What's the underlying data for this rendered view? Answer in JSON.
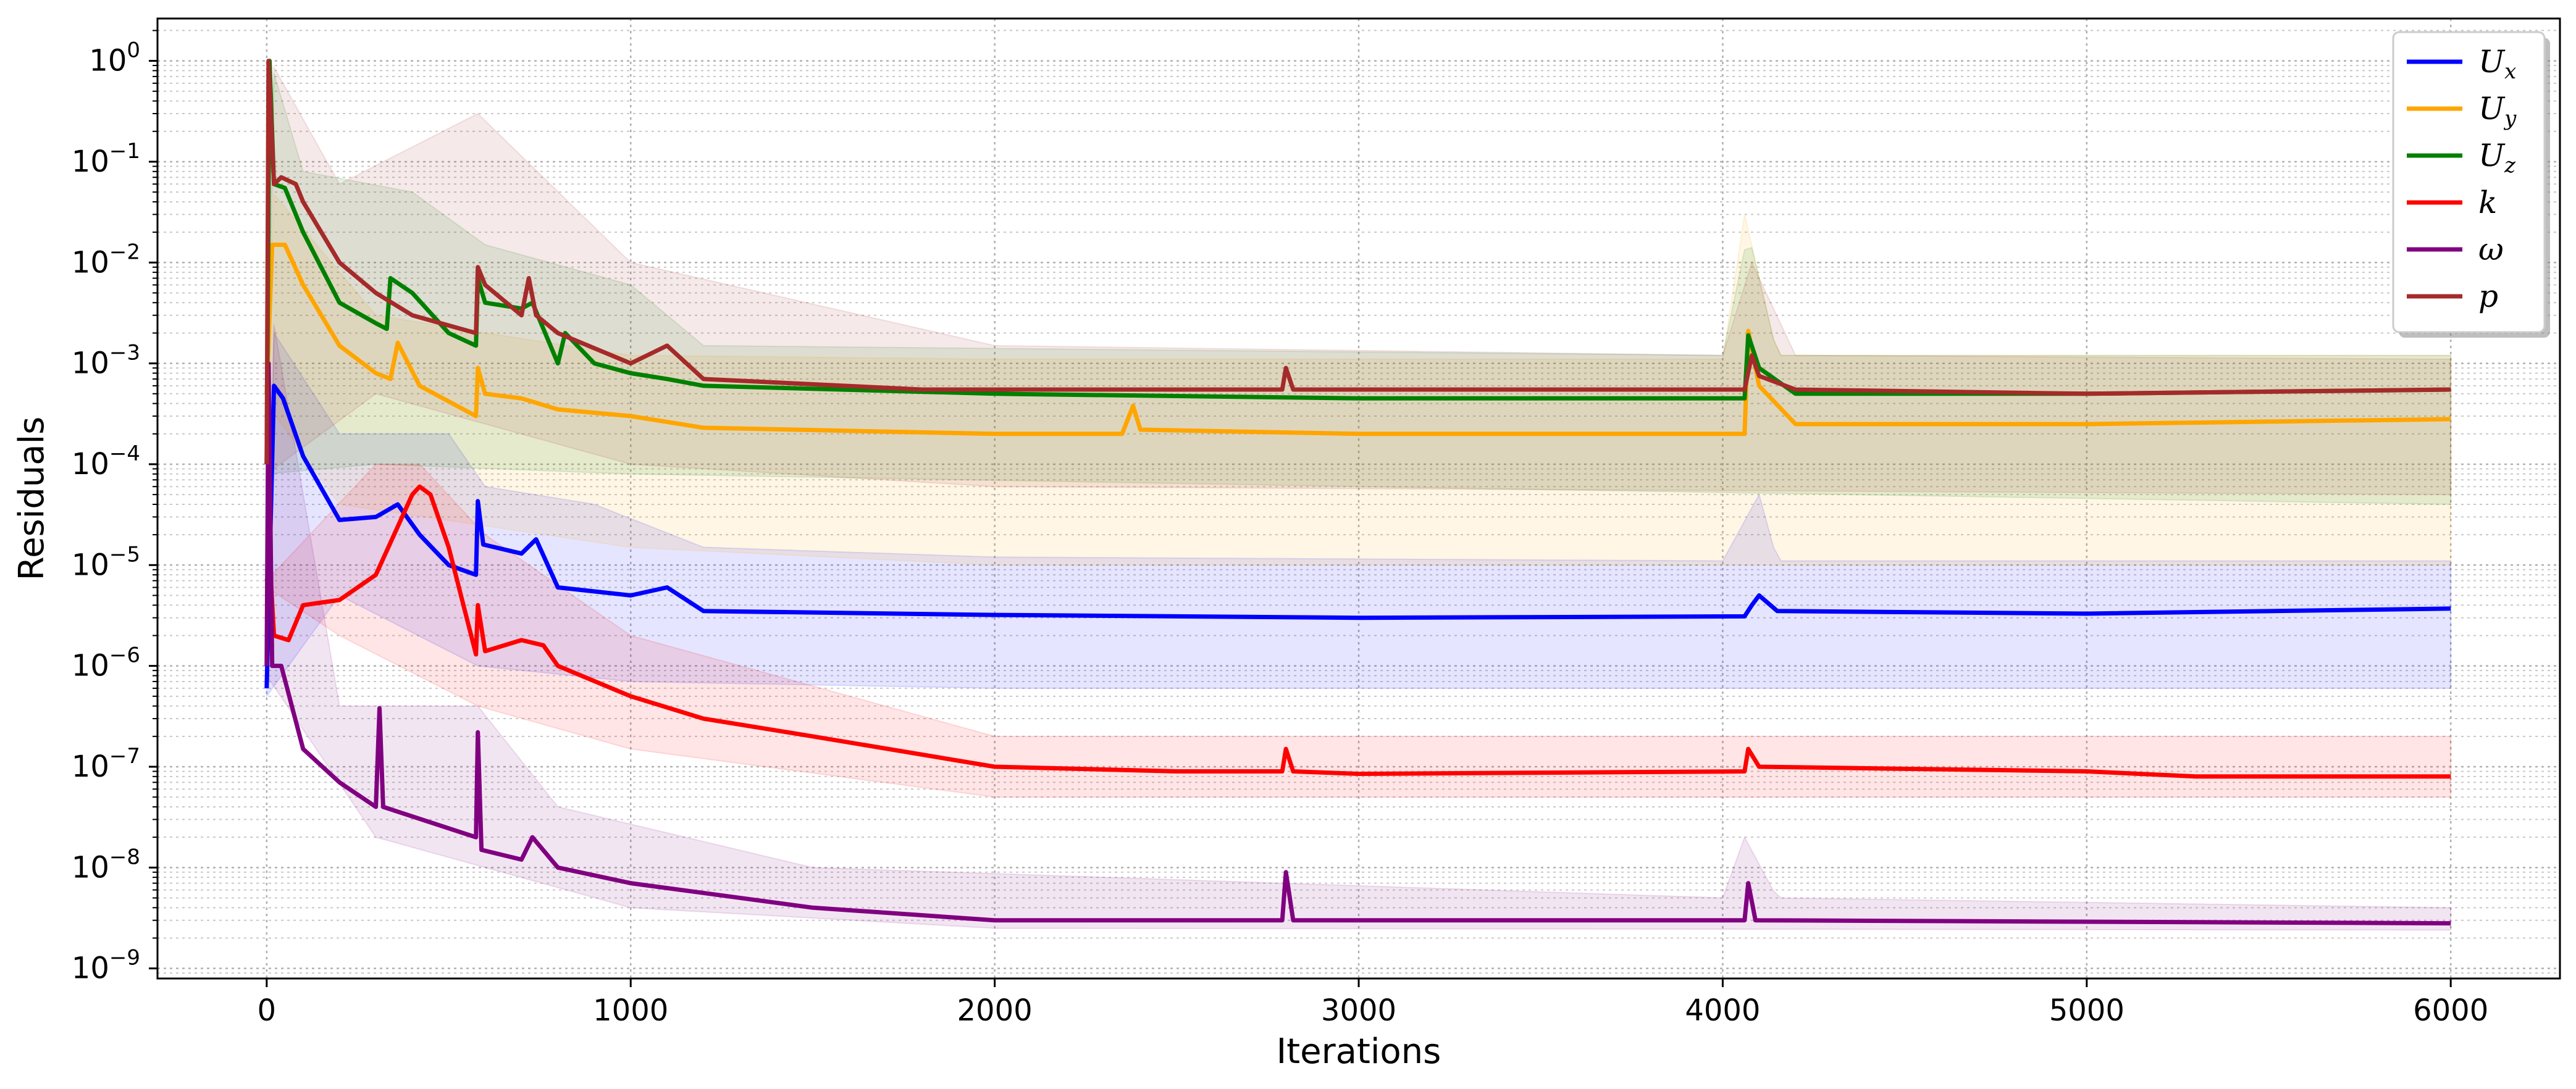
{
  "chart_data": {
    "type": "line",
    "title": "",
    "xlabel": "Iterations",
    "ylabel": "Residuals",
    "xlim": [
      -300,
      6300
    ],
    "ylog": true,
    "ylim_exp": [
      -9.1,
      0.42
    ],
    "x_ticks": [
      0,
      1000,
      2000,
      3000,
      4000,
      5000,
      6000
    ],
    "x_tick_labels": [
      "0",
      "1000",
      "2000",
      "3000",
      "4000",
      "5000",
      "6000"
    ],
    "y_ticks_exp": [
      0,
      -1,
      -2,
      -3,
      -4,
      -5,
      -6,
      -7,
      -8,
      -9
    ],
    "y_tick_labels": [
      {
        "base": "10",
        "exp": "0"
      },
      {
        "base": "10",
        "exp": "−1"
      },
      {
        "base": "10",
        "exp": "−2"
      },
      {
        "base": "10",
        "exp": "−3"
      },
      {
        "base": "10",
        "exp": "−4"
      },
      {
        "base": "10",
        "exp": "−5"
      },
      {
        "base": "10",
        "exp": "−6"
      },
      {
        "base": "10",
        "exp": "−7"
      },
      {
        "base": "10",
        "exp": "−8"
      },
      {
        "base": "10",
        "exp": "−9"
      }
    ],
    "grid": "major and minor, dotted",
    "legend_position": "top-right",
    "series": [
      {
        "name": "U_x",
        "label_main": "U",
        "label_sub": "x",
        "color": "#0000ff",
        "points": [
          [
            0,
            6e-07
          ],
          [
            20,
            0.0006
          ],
          [
            45,
            0.00045
          ],
          [
            100,
            0.00012
          ],
          [
            200,
            2.8e-05
          ],
          [
            300,
            3e-05
          ],
          [
            360,
            4e-05
          ],
          [
            420,
            2e-05
          ],
          [
            500,
            1e-05
          ],
          [
            575,
            8e-06
          ],
          [
            580,
            4.3e-05
          ],
          [
            595,
            1.6e-05
          ],
          [
            700,
            1.3e-05
          ],
          [
            740,
            1.8e-05
          ],
          [
            800,
            6e-06
          ],
          [
            1000,
            5e-06
          ],
          [
            1100,
            6e-06
          ],
          [
            1200,
            3.5e-06
          ],
          [
            2000,
            3.2e-06
          ],
          [
            3000,
            3e-06
          ],
          [
            4060,
            3.1e-06
          ],
          [
            4080,
            4e-06
          ],
          [
            4100,
            5e-06
          ],
          [
            4150,
            3.5e-06
          ],
          [
            5000,
            3.3e-06
          ],
          [
            6000,
            3.7e-06
          ]
        ],
        "band_upper": [
          [
            0,
            6e-07
          ],
          [
            20,
            0.002
          ],
          [
            200,
            0.0002
          ],
          [
            500,
            0.0002
          ],
          [
            600,
            6e-05
          ],
          [
            900,
            4e-05
          ],
          [
            1200,
            1.5e-05
          ],
          [
            2000,
            1.2e-05
          ],
          [
            4000,
            1.1e-05
          ],
          [
            4100,
            5e-05
          ],
          [
            4150,
            1.1e-05
          ],
          [
            6000,
            1.1e-05
          ]
        ],
        "band_lower": [
          [
            0,
            5e-07
          ],
          [
            200,
            5e-06
          ],
          [
            580,
            1e-06
          ],
          [
            1000,
            7e-07
          ],
          [
            2000,
            6e-07
          ],
          [
            6000,
            6e-07
          ]
        ]
      },
      {
        "name": "U_y",
        "label_main": "U",
        "label_sub": "y",
        "color": "#ffa500",
        "points": [
          [
            0,
            0.0005
          ],
          [
            15,
            0.015
          ],
          [
            50,
            0.015
          ],
          [
            100,
            0.006
          ],
          [
            200,
            0.0015
          ],
          [
            300,
            0.0008
          ],
          [
            340,
            0.0007
          ],
          [
            360,
            0.0016
          ],
          [
            420,
            0.0006
          ],
          [
            575,
            0.0003
          ],
          [
            580,
            0.0009
          ],
          [
            600,
            0.0005
          ],
          [
            700,
            0.00045
          ],
          [
            800,
            0.00035
          ],
          [
            1000,
            0.0003
          ],
          [
            1200,
            0.00023
          ],
          [
            2000,
            0.0002
          ],
          [
            2350,
            0.0002
          ],
          [
            2380,
            0.00038
          ],
          [
            2400,
            0.00022
          ],
          [
            3000,
            0.0002
          ],
          [
            4060,
            0.0002
          ],
          [
            4070,
            0.0021
          ],
          [
            4100,
            0.0006
          ],
          [
            4200,
            0.00025
          ],
          [
            5000,
            0.00025
          ],
          [
            6000,
            0.00028
          ]
        ],
        "band_upper": [
          [
            0,
            0.0005
          ],
          [
            15,
            0.05
          ],
          [
            300,
            0.003
          ],
          [
            600,
            0.002
          ],
          [
            1000,
            0.0012
          ],
          [
            2000,
            0.0011
          ],
          [
            4000,
            0.0011
          ],
          [
            4060,
            0.03
          ],
          [
            4150,
            0.0012
          ],
          [
            6000,
            0.0012
          ]
        ],
        "band_lower": [
          [
            0,
            0.0004
          ],
          [
            200,
            4e-05
          ],
          [
            1000,
            1.5e-05
          ],
          [
            2000,
            1e-05
          ],
          [
            6000,
            1e-05
          ]
        ]
      },
      {
        "name": "U_z",
        "label_main": "U",
        "label_sub": "z",
        "color": "#008000",
        "points": [
          [
            0,
            0.0001
          ],
          [
            8,
            1
          ],
          [
            20,
            0.06
          ],
          [
            50,
            0.055
          ],
          [
            100,
            0.02
          ],
          [
            200,
            0.004
          ],
          [
            300,
            0.0025
          ],
          [
            330,
            0.0022
          ],
          [
            340,
            0.007
          ],
          [
            400,
            0.005
          ],
          [
            500,
            0.002
          ],
          [
            575,
            0.0015
          ],
          [
            580,
            0.007
          ],
          [
            600,
            0.004
          ],
          [
            700,
            0.0035
          ],
          [
            730,
            0.004
          ],
          [
            800,
            0.001
          ],
          [
            820,
            0.002
          ],
          [
            900,
            0.001
          ],
          [
            1000,
            0.0008
          ],
          [
            1100,
            0.0007
          ],
          [
            1200,
            0.0006
          ],
          [
            2000,
            0.0005
          ],
          [
            3000,
            0.00045
          ],
          [
            4060,
            0.00045
          ],
          [
            4070,
            0.0019
          ],
          [
            4100,
            0.0009
          ],
          [
            4200,
            0.0005
          ],
          [
            5000,
            0.0005
          ],
          [
            6000,
            0.00055
          ]
        ],
        "band_upper": [
          [
            0,
            0.0001
          ],
          [
            10,
            1
          ],
          [
            100,
            0.08
          ],
          [
            400,
            0.05
          ],
          [
            600,
            0.015
          ],
          [
            1000,
            0.006
          ],
          [
            1200,
            0.0015
          ],
          [
            4000,
            0.0012
          ],
          [
            4070,
            0.02
          ],
          [
            4150,
            0.0012
          ],
          [
            6000,
            0.0012
          ]
        ],
        "band_lower": [
          [
            0,
            8e-05
          ],
          [
            300,
            0.0001
          ],
          [
            1000,
            8e-05
          ],
          [
            3000,
            6e-05
          ],
          [
            6000,
            4e-05
          ]
        ]
      },
      {
        "name": "k",
        "label_main": "k",
        "label_sub": "",
        "color": "#ff0000",
        "points": [
          [
            0,
            7e-06
          ],
          [
            10,
            9e-06
          ],
          [
            20,
            2e-06
          ],
          [
            60,
            1.8e-06
          ],
          [
            100,
            4e-06
          ],
          [
            200,
            4.5e-06
          ],
          [
            300,
            8e-06
          ],
          [
            350,
            2e-05
          ],
          [
            400,
            5e-05
          ],
          [
            420,
            6e-05
          ],
          [
            450,
            5e-05
          ],
          [
            500,
            1.5e-05
          ],
          [
            575,
            1.3e-06
          ],
          [
            580,
            4e-06
          ],
          [
            600,
            1.4e-06
          ],
          [
            700,
            1.8e-06
          ],
          [
            760,
            1.6e-06
          ],
          [
            800,
            1e-06
          ],
          [
            1000,
            5e-07
          ],
          [
            1200,
            3e-07
          ],
          [
            1500,
            2e-07
          ],
          [
            2000,
            1e-07
          ],
          [
            2500,
            9e-08
          ],
          [
            2790,
            9e-08
          ],
          [
            2800,
            1.5e-07
          ],
          [
            2820,
            9e-08
          ],
          [
            3000,
            8.5e-08
          ],
          [
            4060,
            9e-08
          ],
          [
            4070,
            1.5e-07
          ],
          [
            4100,
            1e-07
          ],
          [
            5000,
            9e-08
          ],
          [
            5300,
            8e-08
          ],
          [
            6000,
            8e-08
          ]
        ],
        "band_upper": [
          [
            0,
            7e-06
          ],
          [
            300,
            0.0001
          ],
          [
            420,
            0.0001
          ],
          [
            600,
            2e-05
          ],
          [
            1000,
            2e-06
          ],
          [
            2000,
            2e-07
          ],
          [
            3000,
            2e-07
          ],
          [
            4100,
            2e-07
          ],
          [
            6000,
            2e-07
          ]
        ],
        "band_lower": [
          [
            0,
            6e-06
          ],
          [
            200,
            2e-06
          ],
          [
            580,
            4e-07
          ],
          [
            1000,
            1.5e-07
          ],
          [
            2000,
            5e-08
          ],
          [
            3000,
            5e-08
          ],
          [
            6000,
            5e-08
          ]
        ]
      },
      {
        "name": "ω",
        "label_main": "ω",
        "label_sub": "",
        "color": "#800080",
        "points": [
          [
            0,
            1e-06
          ],
          [
            5,
            0.001
          ],
          [
            15,
            1e-06
          ],
          [
            40,
            1e-06
          ],
          [
            100,
            1.5e-07
          ],
          [
            200,
            7e-08
          ],
          [
            300,
            4e-08
          ],
          [
            310,
            3.8e-07
          ],
          [
            320,
            4e-08
          ],
          [
            575,
            2e-08
          ],
          [
            580,
            2.2e-07
          ],
          [
            590,
            1.5e-08
          ],
          [
            700,
            1.2e-08
          ],
          [
            730,
            2e-08
          ],
          [
            800,
            1e-08
          ],
          [
            1000,
            7e-09
          ],
          [
            1500,
            4e-09
          ],
          [
            2000,
            3e-09
          ],
          [
            2790,
            3e-09
          ],
          [
            2800,
            9e-09
          ],
          [
            2820,
            3e-09
          ],
          [
            4060,
            3e-09
          ],
          [
            4070,
            7e-09
          ],
          [
            4090,
            3e-09
          ],
          [
            6000,
            2.8e-09
          ]
        ],
        "band_upper": [
          [
            0,
            1e-06
          ],
          [
            5,
            0.005
          ],
          [
            200,
            4e-07
          ],
          [
            580,
            4e-07
          ],
          [
            800,
            4e-08
          ],
          [
            1500,
            1e-08
          ],
          [
            4000,
            5e-09
          ],
          [
            4060,
            2e-08
          ],
          [
            4150,
            5e-09
          ],
          [
            6000,
            4e-09
          ]
        ],
        "band_lower": [
          [
            0,
            8e-07
          ],
          [
            300,
            2e-08
          ],
          [
            1000,
            4e-09
          ],
          [
            2000,
            2.5e-09
          ],
          [
            6000,
            2.4e-09
          ]
        ]
      },
      {
        "name": "p",
        "label_main": "p",
        "label_sub": "",
        "color": "#a52a2a",
        "points": [
          [
            0,
            0.0001
          ],
          [
            5,
            1
          ],
          [
            20,
            0.06
          ],
          [
            40,
            0.07
          ],
          [
            80,
            0.06
          ],
          [
            100,
            0.04
          ],
          [
            200,
            0.01
          ],
          [
            300,
            0.005
          ],
          [
            400,
            0.003
          ],
          [
            575,
            0.002
          ],
          [
            580,
            0.009
          ],
          [
            600,
            0.006
          ],
          [
            700,
            0.003
          ],
          [
            720,
            0.007
          ],
          [
            740,
            0.003
          ],
          [
            800,
            0.002
          ],
          [
            1000,
            0.001
          ],
          [
            1100,
            0.0015
          ],
          [
            1200,
            0.0007
          ],
          [
            1800,
            0.00055
          ],
          [
            2000,
            0.00055
          ],
          [
            2790,
            0.00055
          ],
          [
            2800,
            0.0009
          ],
          [
            2820,
            0.00055
          ],
          [
            4060,
            0.00055
          ],
          [
            4080,
            0.0012
          ],
          [
            4100,
            0.00075
          ],
          [
            4200,
            0.00055
          ],
          [
            5000,
            0.0005
          ],
          [
            6000,
            0.00055
          ]
        ],
        "band_upper": [
          [
            0,
            0.0001
          ],
          [
            10,
            1
          ],
          [
            200,
            0.06
          ],
          [
            580,
            0.3
          ],
          [
            1000,
            0.01
          ],
          [
            2000,
            0.0015
          ],
          [
            4000,
            0.0012
          ],
          [
            4080,
            0.01
          ],
          [
            4200,
            0.0012
          ],
          [
            6000,
            0.0011
          ]
        ],
        "band_lower": [
          [
            0,
            8e-05
          ],
          [
            300,
            0.0005
          ],
          [
            1000,
            0.0001
          ],
          [
            2000,
            6e-05
          ],
          [
            6000,
            5e-05
          ]
        ]
      }
    ]
  }
}
